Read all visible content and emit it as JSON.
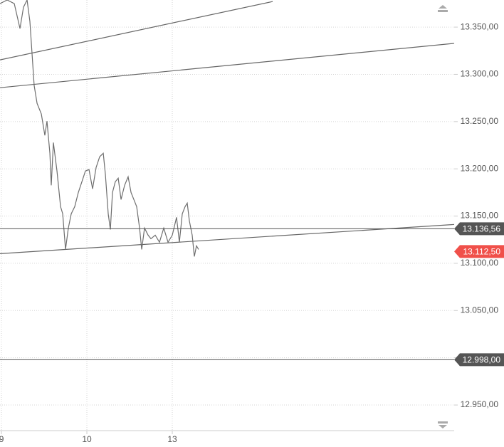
{
  "chart_data": {
    "type": "line",
    "x": [
      -0.017,
      0.067,
      0.15,
      0.217,
      0.258,
      0.3,
      0.333,
      0.358,
      0.383,
      0.417,
      0.467,
      0.508,
      0.533,
      0.567,
      0.583,
      0.608,
      0.65,
      0.692,
      0.717,
      0.75,
      0.783,
      0.817,
      0.858,
      0.9,
      0.942,
      0.983,
      1.025,
      1.067,
      1.108,
      1.15,
      1.192,
      1.217,
      1.25,
      1.275,
      1.3,
      1.333,
      1.367,
      1.4,
      1.442,
      1.483,
      1.517,
      1.55,
      1.583,
      1.617,
      1.642,
      1.675,
      1.717,
      1.75,
      1.8,
      1.85,
      1.9,
      1.95,
      2.0,
      2.05,
      2.083,
      2.117,
      2.15,
      2.175,
      2.2,
      2.233,
      2.258,
      2.283,
      2.308
    ],
    "series": [
      {
        "color": "#6e6e6e",
        "values": [
          13374.9,
          13378.7,
          13374.9,
          13348.5,
          13371.1,
          13378.7,
          13356.0,
          13322.1,
          13288.2,
          13269.3,
          13258.0,
          13235.4,
          13250.5,
          13216.5,
          13182.6,
          13227.8,
          13197.7,
          13160.0,
          13152.4,
          13114.7,
          13137.3,
          13152.4,
          13160.0,
          13175.0,
          13186.4,
          13197.7,
          13199.2,
          13178.8,
          13201.4,
          13212.8,
          13216.5,
          13193.9,
          13152.4,
          13135.8,
          13175.0,
          13186.4,
          13190.1,
          13167.5,
          13182.6,
          13191.6,
          13175.0,
          13167.5,
          13160.0,
          13137.3,
          13114.7,
          13137.3,
          13129.8,
          13126.0,
          13129.8,
          13122.3,
          13137.3,
          13122.3,
          13129.8,
          13148.7,
          13122.3,
          13152.4,
          13160.0,
          13163.7,
          13144.9,
          13129.8,
          13107.2,
          13118.5,
          13114.7
        ]
      }
    ],
    "xlim": [
      -0.017,
      5.3
    ],
    "xticks": [
      {
        "value": 0,
        "label": "9"
      },
      {
        "value": 1,
        "label": "10"
      },
      {
        "value": 2,
        "label": "13"
      }
    ],
    "ylim": [
      12922.9,
      13378.7
    ],
    "yticks": [
      {
        "value": 12950,
        "label": "12.950,00"
      },
      {
        "value": 13000,
        "label": "13.000,00"
      },
      {
        "value": 13050,
        "label": "13.050,00"
      },
      {
        "value": 13100,
        "label": "13.100,00"
      },
      {
        "value": 13150,
        "label": "13.150,00"
      },
      {
        "value": 13200,
        "label": "13.200,00"
      },
      {
        "value": 13250,
        "label": "13.250,00"
      },
      {
        "value": 13300,
        "label": "13.300,00"
      },
      {
        "value": 13350,
        "label": "13.350,00"
      }
    ],
    "grid": true,
    "trendlines": [
      {
        "color": "#666666",
        "x": [
          -0.017,
          3.175
        ],
        "y": [
          13315.3,
          13377.1
        ]
      },
      {
        "color": "#666666",
        "x": [
          -0.017,
          5.3
        ],
        "y": [
          13285.9,
          13332.8
        ]
      },
      {
        "color": "#666666",
        "x": [
          -0.017,
          5.3
        ],
        "y": [
          13110.2,
          13141.1
        ]
      }
    ],
    "levels": [
      {
        "value": 13136.56,
        "label": "13.136,56",
        "color": "#555555",
        "line": true
      },
      {
        "value": 13112.5,
        "label": "13.112,50",
        "color": "#f0504a",
        "line": false
      },
      {
        "value": 12998,
        "label": "12.998,00",
        "color": "#555555",
        "line": true
      }
    ]
  }
}
